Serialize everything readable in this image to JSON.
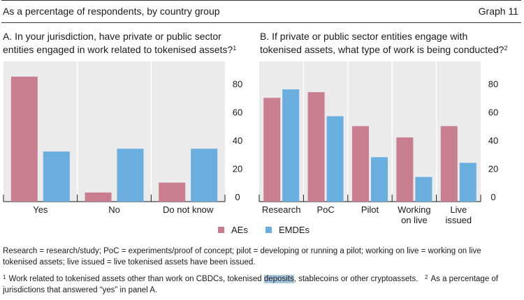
{
  "header": {
    "subtitle": "As a percentage of respondents, by country group",
    "graph_number": "Graph 11"
  },
  "panels": {
    "a_title": "A. In your jurisdiction, have private or public sector entities engaged in work related to tokenised assets?",
    "a_title_sup": "1",
    "b_title": "B. If private or public sector entities engage with tokenised assets, what type of work is being conducted?",
    "b_title_sup": "2"
  },
  "legend": {
    "aes": "AEs",
    "emdes": "EMDEs"
  },
  "colors": {
    "aes": "#c87e8f",
    "emdes": "#6aaee0",
    "panel_bg": "#ebebeb"
  },
  "chart_data": [
    {
      "type": "bar",
      "title": "A. In your jurisdiction, have private or public sector entities engaged in work related to tokenised assets?",
      "categories": [
        "Yes",
        "No",
        "Do not know"
      ],
      "series": [
        {
          "name": "AEs",
          "values": [
            85,
            3,
            10
          ]
        },
        {
          "name": "EMDEs",
          "values": [
            32,
            34,
            34
          ]
        }
      ],
      "ylim": [
        0,
        100
      ],
      "yticks": [
        "0",
        "20",
        "40",
        "60",
        "80"
      ],
      "xlabel": "",
      "ylabel": ""
    },
    {
      "type": "bar",
      "title": "B. If private or public sector entities engage with tokenised assets, what type of work is being conducted?",
      "categories": [
        "Research",
        "PoC",
        "Pilot",
        "Working on live",
        "Live issued"
      ],
      "category_lines": [
        [
          "Research"
        ],
        [
          "PoC"
        ],
        [
          "Pilot"
        ],
        [
          "Working",
          "on live"
        ],
        [
          "Live",
          "issued"
        ]
      ],
      "series": [
        {
          "name": "AEs",
          "values": [
            70,
            74,
            50,
            42,
            50
          ]
        },
        {
          "name": "EMDEs",
          "values": [
            76,
            57,
            28,
            14,
            24
          ]
        }
      ],
      "ylim": [
        0,
        100
      ],
      "yticks": [
        "0",
        "20",
        "40",
        "60",
        "80"
      ],
      "xlabel": "",
      "ylabel": ""
    }
  ],
  "notes": {
    "definitions": "Research = research/study; PoC = experiments/proof of concept; pilot = developing or running a pilot; working on live = working on live tokenised assets; live issued = live tokenised assets have been issued.",
    "fn1_num": "1",
    "fn1_before": "Work related to tokenised assets other than work on CBDCs, tokenised ",
    "fn1_highlight": "deposits",
    "fn1_after": ", stablecoins or other cryptoassets.",
    "fn2_num": "2",
    "fn2_text": "As a percentage of jurisdictions that answered “yes” in panel A."
  }
}
